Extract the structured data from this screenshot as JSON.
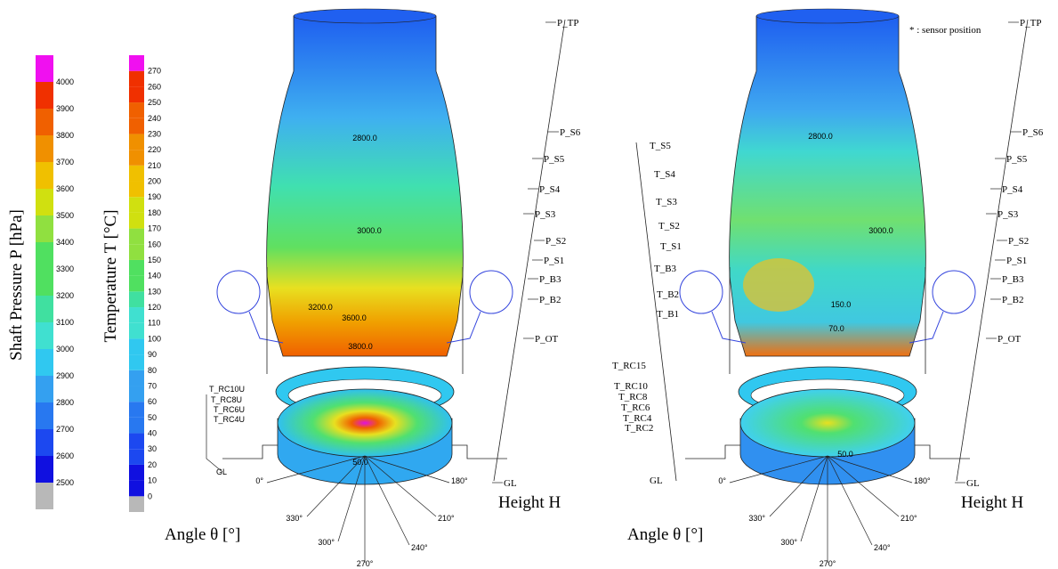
{
  "pressure_scale": {
    "title": "Shaft Pressure P [hPa]",
    "ticks": [
      "2500",
      "2600",
      "2700",
      "2800",
      "2900",
      "3000",
      "3100",
      "3200",
      "3300",
      "3400",
      "3500",
      "3600",
      "3700",
      "3800",
      "3900",
      "4000"
    ]
  },
  "temperature_scale": {
    "title": "Temperature T [°C]",
    "ticks": [
      "0",
      "10",
      "20",
      "30",
      "40",
      "50",
      "60",
      "70",
      "80",
      "90",
      "100",
      "110",
      "120",
      "130",
      "140",
      "150",
      "160",
      "170",
      "180",
      "190",
      "200",
      "210",
      "220",
      "230",
      "240",
      "250",
      "260",
      "270"
    ]
  },
  "left_panel": {
    "height_labels": [
      "P_TP",
      "P_S6",
      "P_S5",
      "P_S4",
      "P_S3",
      "P_S2",
      "P_S1",
      "P_B3",
      "P_B2",
      "P_OT",
      "GL"
    ],
    "ring_labels": [
      "T_RC10U",
      "T_RC8U",
      "T_RC6U",
      "T_RC4U",
      "GL"
    ],
    "angle_labels": [
      "0°",
      "180°",
      "330°",
      "300°",
      "270°",
      "240°",
      "210°"
    ],
    "contour_labels": [
      "2800.0",
      "3000.0",
      "3200.0",
      "3600.0",
      "3800.0",
      "50.0"
    ],
    "height_axis_title": "Height H",
    "angle_axis_title": "Angle θ [°]"
  },
  "right_panel": {
    "note": "* : sensor position",
    "height_labels": [
      "P_TP",
      "P_S6",
      "P_S5",
      "P_S4",
      "P_S3",
      "P_S2",
      "P_S1",
      "P_B3",
      "P_B2",
      "P_OT",
      "GL"
    ],
    "temperature_labels": [
      "T_S5",
      "T_S4",
      "T_S3",
      "T_S2",
      "T_S1",
      "T_B3",
      "T_B2",
      "T_B1",
      "T_RC15",
      "T_RC10",
      "T_RC8",
      "T_RC6",
      "T_RC4",
      "T_RC2",
      "GL"
    ],
    "angle_labels": [
      "0°",
      "180°",
      "330°",
      "300°",
      "270°",
      "240°",
      "210°"
    ],
    "contour_labels": [
      "2800.0",
      "3000.0",
      "150.0",
      "70.0",
      "50.0"
    ],
    "height_axis_title": "Height H",
    "angle_axis_title": "Angle θ [°]"
  }
}
